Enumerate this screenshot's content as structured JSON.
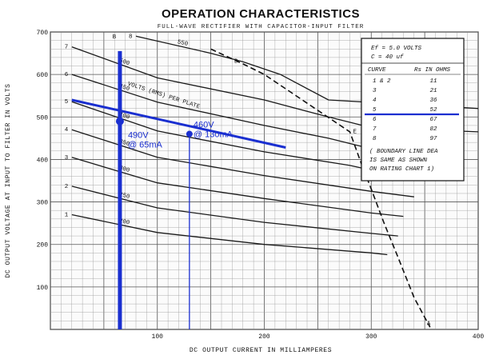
{
  "chart_data": {
    "type": "line",
    "title": "OPERATION CHARACTERISTICS",
    "subtitle": "FULL-WAVE RECTIFIER WITH CAPACITOR-INPUT FILTER",
    "xlabel": "DC OUTPUT CURRENT IN MILLIAMPERES",
    "ylabel": "DC OUTPUT VOLTAGE AT INPUT TO FILTER IN VOLTS",
    "xlim": [
      0,
      400
    ],
    "ylim": [
      0,
      700
    ],
    "xticks": [
      100,
      200,
      300,
      400
    ],
    "yticks": [
      100,
      200,
      300,
      400,
      500,
      600,
      700
    ],
    "grid": true,
    "series": [
      {
        "curve": "1",
        "rms": "200",
        "points": [
          [
            20,
            270
          ],
          [
            100,
            228
          ],
          [
            200,
            200
          ],
          [
            300,
            180
          ],
          [
            315,
            176
          ]
        ]
      },
      {
        "curve": "2",
        "rms": "250",
        "points": [
          [
            20,
            337
          ],
          [
            100,
            286
          ],
          [
            200,
            252
          ],
          [
            300,
            226
          ],
          [
            325,
            220
          ]
        ]
      },
      {
        "curve": "3",
        "rms": "300",
        "points": [
          [
            20,
            405
          ],
          [
            100,
            345
          ],
          [
            200,
            308
          ],
          [
            300,
            274
          ],
          [
            330,
            266
          ]
        ]
      },
      {
        "curve": "4",
        "rms": "350",
        "points": [
          [
            20,
            470
          ],
          [
            100,
            405
          ],
          [
            200,
            362
          ],
          [
            300,
            325
          ],
          [
            340,
            312
          ]
        ]
      },
      {
        "curve": "5",
        "rms": "400",
        "points": [
          [
            20,
            536
          ],
          [
            100,
            467
          ],
          [
            200,
            418
          ],
          [
            280,
            386
          ],
          [
            300,
            375
          ],
          [
            355,
            360
          ]
        ]
      },
      {
        "curve": "6",
        "rms": "450",
        "points": [
          [
            20,
            600
          ],
          [
            100,
            535
          ],
          [
            200,
            480
          ],
          [
            260,
            450
          ],
          [
            300,
            425
          ],
          [
            380,
            410
          ]
        ]
      },
      {
        "curve": "7",
        "rms": "500",
        "points": [
          [
            20,
            665
          ],
          [
            100,
            592
          ],
          [
            200,
            540
          ],
          [
            260,
            500
          ],
          [
            300,
            475
          ],
          [
            400,
            465
          ]
        ]
      },
      {
        "curve": "8",
        "rms": "550",
        "points": [
          [
            80,
            690
          ],
          [
            150,
            650
          ],
          [
            180,
            630
          ],
          [
            215,
            600
          ],
          [
            260,
            540
          ],
          [
            400,
            520
          ]
        ]
      }
    ],
    "boundary_line": {
      "points": [
        [
          150,
          660
        ],
        [
          180,
          625
        ],
        [
          200,
          600
        ],
        [
          280,
          465
        ],
        [
          290,
          395
        ],
        [
          300,
          330
        ],
        [
          312,
          250
        ],
        [
          325,
          170
        ],
        [
          340,
          75
        ],
        [
          355,
          5
        ]
      ],
      "point_labels": [
        {
          "text": "D",
          "x": 172,
          "y": 628
        },
        {
          "text": "E",
          "x": 283,
          "y": 462
        },
        {
          "text": "A",
          "x": 352,
          "y": 10
        }
      ]
    },
    "highlight_line": {
      "points": [
        [
          20,
          540
        ],
        [
          220,
          428
        ]
      ]
    },
    "verticals": [
      {
        "x": 65,
        "label": "490V\n@ 65mA",
        "y": 490
      },
      {
        "x": 130,
        "label": "460V\n@ 130mA",
        "y": 460
      }
    ],
    "legend": {
      "lines": [
        "Ef = 5.0 VOLTS",
        "C = 40 uf"
      ],
      "columns": [
        "CURVE",
        "Rs IN OHMS"
      ],
      "rows": [
        [
          "1 & 2",
          "11"
        ],
        [
          "3",
          "21"
        ],
        [
          "4",
          "36"
        ],
        [
          "5",
          "52"
        ],
        [
          "6",
          "67"
        ],
        [
          "7",
          "82"
        ],
        [
          "8",
          "97"
        ]
      ],
      "note": [
        "( BOUNDARY LINE DEA",
        "IS SAME AS SHOWN",
        "ON RATING CHART 1)"
      ]
    },
    "colors": {
      "highlight": "#1a2fd0",
      "curve": "#1a1a1a"
    }
  },
  "annotations": {
    "a1_line1": "490V",
    "a1_line2": "@ 65mA",
    "a2_line1": "460V",
    "a2_line2": "@ 130mA"
  },
  "labels": {
    "title": "OPERATION CHARACTERISTICS",
    "subtitle": "FULL-WAVE RECTIFIER WITH CAPACITOR-INPUT FILTER",
    "xlabel": "DC OUTPUT CURRENT IN MILLIAMPERES",
    "ylabel": "DC OUTPUT VOLTAGE AT INPUT TO FILTER IN VOLTS",
    "rms_caption": "VOLTS (RMS) PER PLATE",
    "B": "B"
  }
}
